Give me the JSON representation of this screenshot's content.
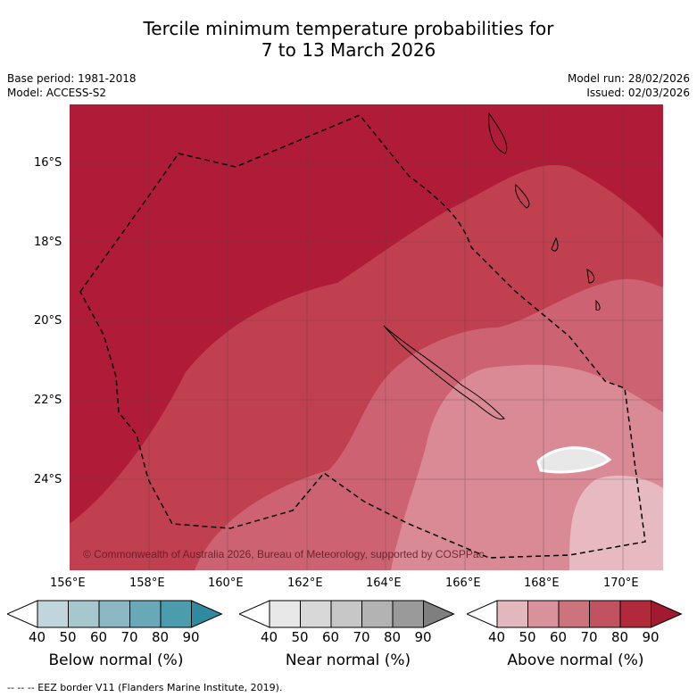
{
  "title_line1": "Tercile minimum temperature probabilities for",
  "title_line2": "7 to 13 March 2026",
  "base_period": "Base period: 1981-2018",
  "model": "Model: ACCESS-S2",
  "model_run": "Model run: 28/02/2026",
  "issued": "Issued: 02/03/2026",
  "copyright": "© Commonwealth of Australia 2026, Bureau of Meteorology, supported by COSPPac",
  "lon_labels": [
    "156°E",
    "158°E",
    "160°E",
    "162°E",
    "164°E",
    "166°E",
    "168°E",
    "170°E"
  ],
  "lat_labels": [
    "16°S",
    "18°S",
    "20°S",
    "22°S",
    "24°S"
  ],
  "colorbars": [
    {
      "label": "Below normal (%)",
      "ticks": [
        "40",
        "50",
        "60",
        "70",
        "80",
        "90"
      ],
      "colors": [
        "#ffffff",
        "#c0d6dc",
        "#a6c7ce",
        "#8bb8c3",
        "#69a8b6",
        "#4b9dae",
        "#2f8aa0"
      ]
    },
    {
      "label": "Near normal (%)",
      "ticks": [
        "40",
        "50",
        "60",
        "70",
        "80",
        "90"
      ],
      "colors": [
        "#ffffff",
        "#e8e8e8",
        "#d8d8d8",
        "#c7c7c7",
        "#b3b3b3",
        "#9a9a9a",
        "#7f7f7f"
      ]
    },
    {
      "label": "Above normal (%)",
      "ticks": [
        "40",
        "50",
        "60",
        "70",
        "80",
        "90"
      ],
      "colors": [
        "#ffffff",
        "#e3b7be",
        "#d8929c",
        "#cc737e",
        "#c0535f",
        "#b02a3c",
        "#a11a30"
      ]
    }
  ],
  "footer": "--  --  -- EEZ border V11 (Flanders Marine Institute, 2019)."
}
